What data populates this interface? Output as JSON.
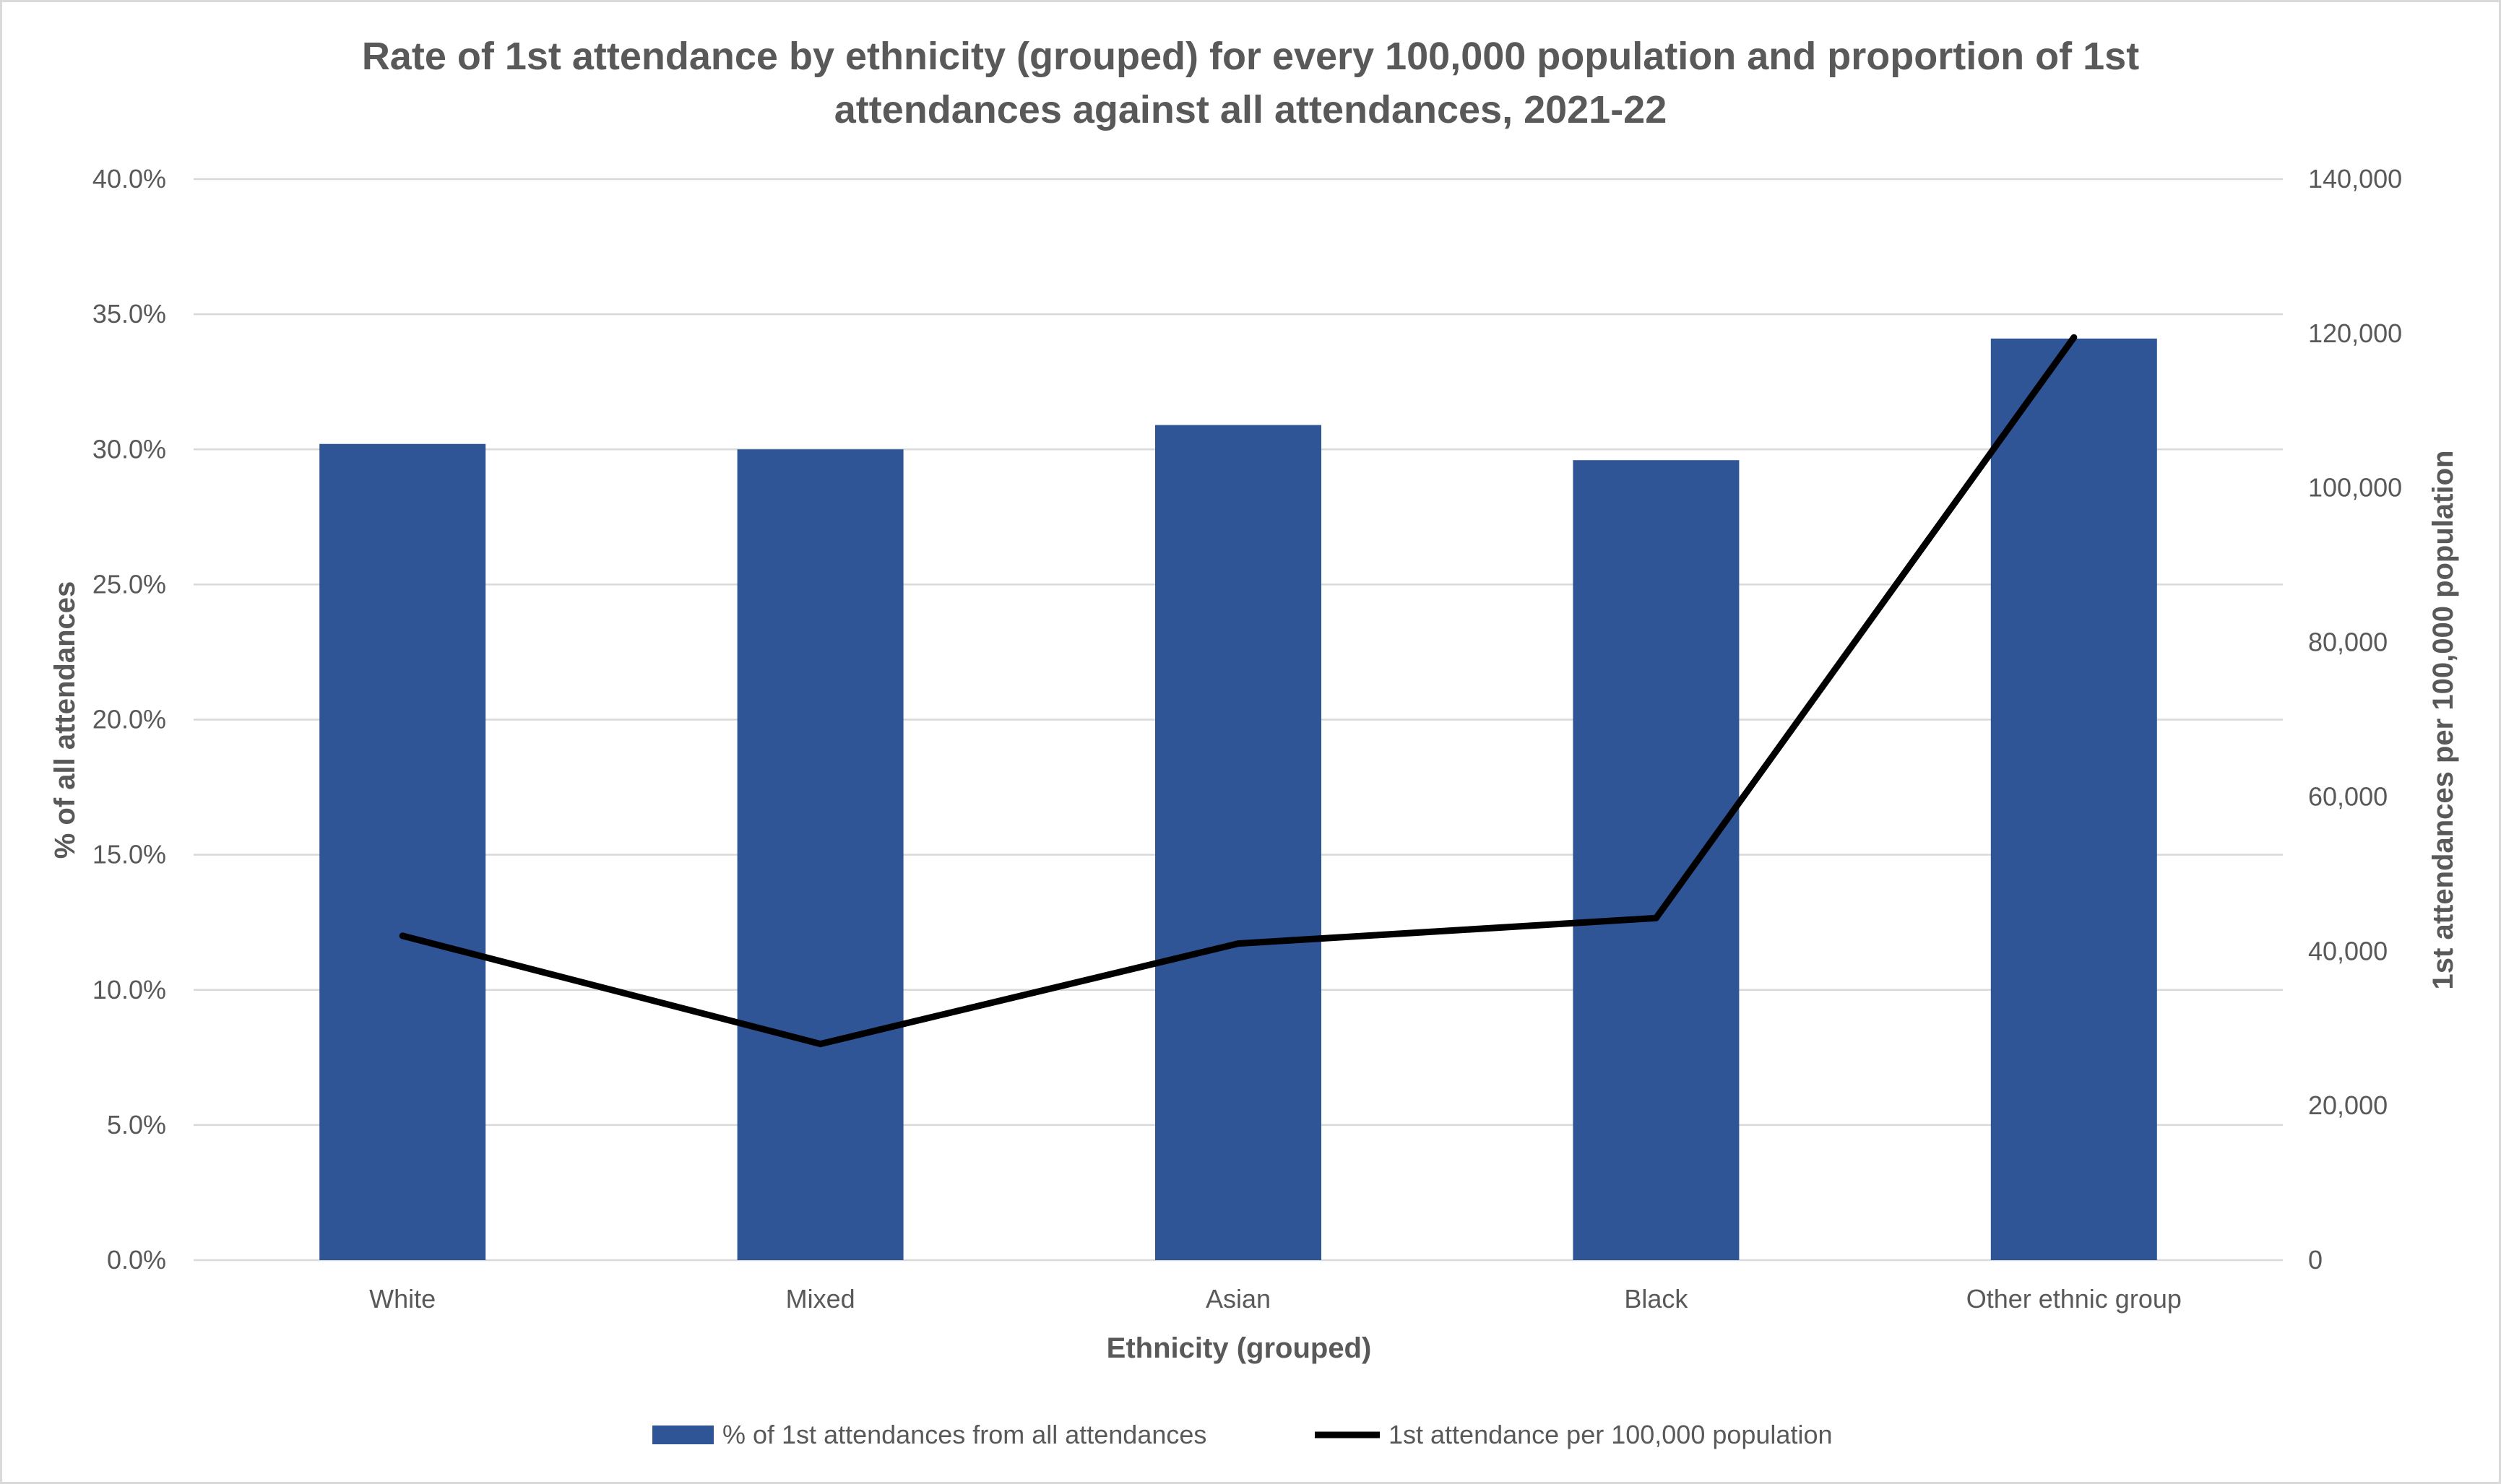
{
  "chart_data": {
    "type": "bar",
    "title_lines": [
      "Rate of 1st attendance by ethnicity (grouped) for every 100,000 population and proportion of 1st",
      "attendances against all attendances, 2021-22"
    ],
    "xlabel": "Ethnicity (grouped)",
    "ylabel_left": "% of all attendances",
    "ylabel_right": "1st attendances per 100,000 population",
    "categories": [
      "White",
      "Mixed",
      "Asian",
      "Black",
      "Other ethnic group"
    ],
    "y_left": {
      "min": 0,
      "max": 40,
      "step": 5,
      "ticks": [
        "0.0%",
        "5.0%",
        "10.0%",
        "15.0%",
        "20.0%",
        "25.0%",
        "30.0%",
        "35.0%",
        "40.0%"
      ]
    },
    "y_right": {
      "min": 0,
      "max": 140000,
      "step": 20000,
      "ticks": [
        "0",
        "20,000",
        "40,000",
        "60,000",
        "80,000",
        "100,000",
        "120,000",
        "140,000"
      ]
    },
    "series": [
      {
        "name": "% of 1st attendances from all attendances",
        "type": "bar",
        "axis": "left",
        "color": "#2f5597",
        "values": [
          30.2,
          30.0,
          30.9,
          29.6,
          34.1
        ]
      },
      {
        "name": "1st attendance per 100,000 population",
        "type": "line",
        "axis": "right",
        "color": "#000000",
        "values": [
          42000,
          28000,
          41000,
          44300,
          119500
        ]
      }
    ],
    "grid": true,
    "legend_position": "bottom"
  }
}
